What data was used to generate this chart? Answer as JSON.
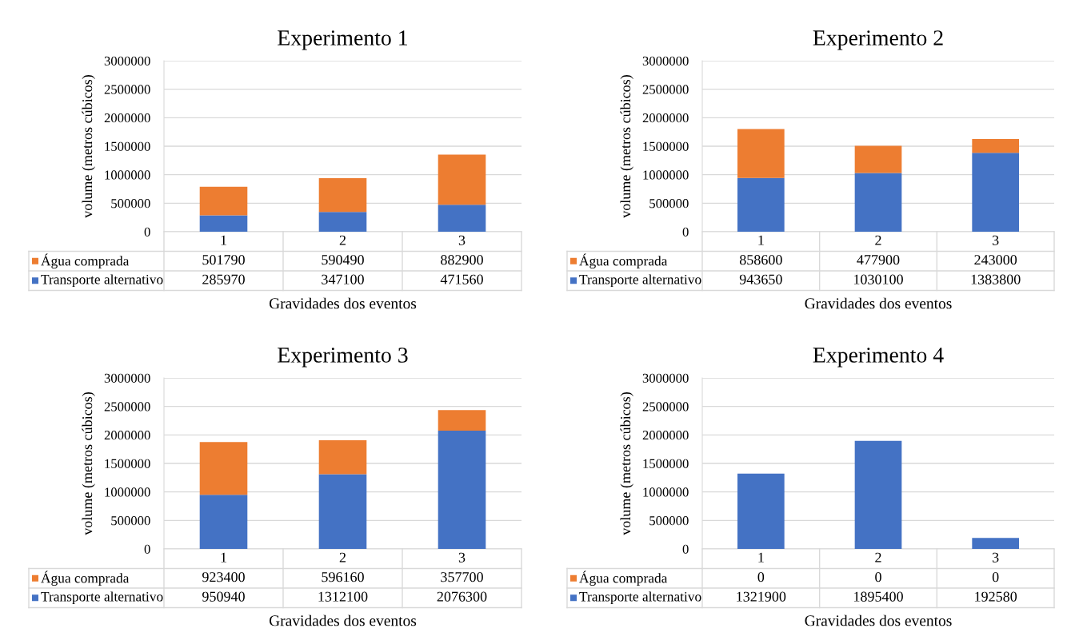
{
  "chart_data": [
    {
      "type": "bar",
      "title": "Experimento 1",
      "legend": "bottom",
      "xlabel": "Gravidades dos eventos",
      "ylabel": "volume (metros cúbicos)",
      "categories": [
        "1",
        "2",
        "3"
      ],
      "stacked": true,
      "data_labels": true,
      "grid": "y",
      "ylim": [
        0,
        3000000
      ],
      "yticks": [
        0,
        500000,
        1000000,
        1500000,
        2000000,
        2500000,
        3000000
      ],
      "series": [
        {
          "name": "Transporte alternativo",
          "color": "#4472c4",
          "values": [
            285970,
            347100,
            471560
          ]
        },
        {
          "name": "Água comprada",
          "color": "#ed7d31",
          "values": [
            501790,
            590490,
            882900
          ]
        }
      ]
    },
    {
      "type": "bar",
      "title": "Experimento 2",
      "legend": "bottom",
      "xlabel": "Gravidades dos eventos",
      "ylabel": "volume (metros cúbicos)",
      "categories": [
        "1",
        "2",
        "3"
      ],
      "stacked": true,
      "data_labels": true,
      "grid": "y",
      "ylim": [
        0,
        3000000
      ],
      "yticks": [
        0,
        500000,
        1000000,
        1500000,
        2000000,
        2500000,
        3000000
      ],
      "series": [
        {
          "name": "Transporte alternativo",
          "color": "#4472c4",
          "values": [
            943650,
            1030100,
            1383800
          ]
        },
        {
          "name": "Água comprada",
          "color": "#ed7d31",
          "values": [
            858600,
            477900,
            243000
          ]
        }
      ]
    },
    {
      "type": "bar",
      "title": "Experimento 3",
      "legend": "bottom",
      "xlabel": "Gravidades dos eventos",
      "ylabel": "volume (metros cúbicos)",
      "categories": [
        "1",
        "2",
        "3"
      ],
      "stacked": true,
      "data_labels": true,
      "grid": "y",
      "ylim": [
        0,
        3000000
      ],
      "yticks": [
        0,
        500000,
        1000000,
        1500000,
        2000000,
        2500000,
        3000000
      ],
      "series": [
        {
          "name": "Transporte alternativo",
          "color": "#4472c4",
          "values": [
            950940,
            1312100,
            2076300
          ]
        },
        {
          "name": "Água comprada",
          "color": "#ed7d31",
          "values": [
            923400,
            596160,
            357700
          ]
        }
      ]
    },
    {
      "type": "bar",
      "title": "Experimento 4",
      "legend": "bottom",
      "xlabel": "Gravidades dos eventos",
      "ylabel": "volume (metros cúbicos)",
      "categories": [
        "1",
        "2",
        "3"
      ],
      "stacked": true,
      "data_labels": true,
      "grid": "y",
      "ylim": [
        0,
        3000000
      ],
      "yticks": [
        0,
        500000,
        1000000,
        1500000,
        2000000,
        2500000,
        3000000
      ],
      "series": [
        {
          "name": "Transporte alternativo",
          "color": "#4472c4",
          "values": [
            1321900,
            1895400,
            192580
          ]
        },
        {
          "name": "Água comprada",
          "color": "#ed7d31",
          "values": [
            0,
            0,
            0
          ]
        }
      ]
    }
  ]
}
